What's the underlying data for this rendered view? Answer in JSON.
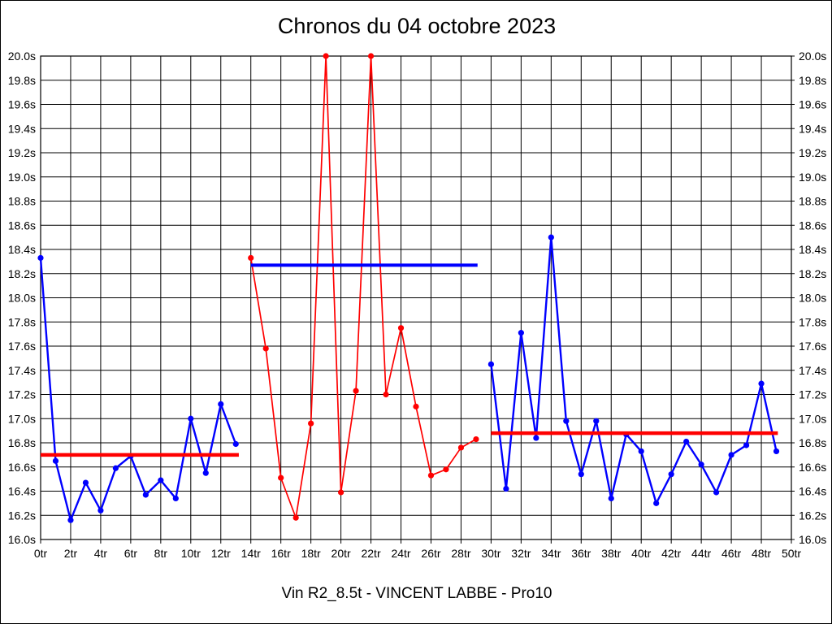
{
  "page": {
    "background_color": "#ffffff",
    "frame_border_color": "#000000"
  },
  "chart_data": {
    "type": "line",
    "title": "Chronos du 04 octobre 2023",
    "caption": "Vin R2_8.5t - VINCENT LABBE - Pro10",
    "grid": true,
    "legend_position": "none",
    "x_axis": {
      "min": 0,
      "max": 50,
      "tick_step": 2,
      "unit": "tr",
      "tick_labels": [
        "0tr",
        "2tr",
        "4tr",
        "6tr",
        "8tr",
        "10tr",
        "12tr",
        "14tr",
        "16tr",
        "18tr",
        "20tr",
        "22tr",
        "24tr",
        "26tr",
        "28tr",
        "30tr",
        "32tr",
        "34tr",
        "36tr",
        "38tr",
        "40tr",
        "42tr",
        "44tr",
        "46tr",
        "48tr",
        "50tr"
      ]
    },
    "y_axis": {
      "min": 16.0,
      "max": 20.0,
      "tick_step": 0.2,
      "unit": "s",
      "tick_labels": [
        "20.0s",
        "19.8s",
        "19.6s",
        "19.4s",
        "19.2s",
        "19.0s",
        "18.8s",
        "18.6s",
        "18.4s",
        "18.2s",
        "18.0s",
        "17.8s",
        "17.6s",
        "17.4s",
        "17.2s",
        "17.0s",
        "16.8s",
        "16.6s",
        "16.4s",
        "16.2s",
        "16.0s"
      ]
    },
    "series": [
      {
        "name": "laps-0-13",
        "color": "#0000ff",
        "line_width": 2.4,
        "x_start": 0,
        "values": [
          18.33,
          16.65,
          16.16,
          16.47,
          16.24,
          16.59,
          16.69,
          16.37,
          16.49,
          16.34,
          17.0,
          16.55,
          17.12,
          16.79
        ]
      },
      {
        "name": "laps-14-29",
        "color": "#ff0000",
        "line_width": 1.7,
        "x_start": 14,
        "values": [
          18.33,
          17.58,
          16.51,
          16.18,
          16.96,
          20.0,
          16.39,
          17.23,
          20.0,
          17.2,
          17.75,
          17.1,
          16.53,
          16.58,
          16.76,
          16.83
        ]
      },
      {
        "name": "laps-30-49",
        "color": "#0000ff",
        "line_width": 2.4,
        "x_start": 30,
        "values": [
          17.45,
          16.42,
          17.71,
          16.84,
          18.5,
          16.98,
          16.54,
          16.98,
          16.34,
          16.87,
          16.73,
          16.3,
          16.54,
          16.81,
          16.62,
          16.39,
          16.7,
          16.78,
          17.29,
          16.73
        ]
      }
    ],
    "average_lines": [
      {
        "name": "average-laps-0-13",
        "value": 16.7,
        "x_from": 0,
        "x_to": 13.2,
        "color": "#ff0000",
        "line_width": 4.5
      },
      {
        "name": "average-laps-14-29",
        "value": 18.27,
        "x_from": 14,
        "x_to": 29.1,
        "color": "#0000ff",
        "line_width": 4.0
      },
      {
        "name": "average-laps-30-49",
        "value": 16.88,
        "x_from": 30,
        "x_to": 49.1,
        "color": "#ff0000",
        "line_width": 4.5
      }
    ]
  }
}
